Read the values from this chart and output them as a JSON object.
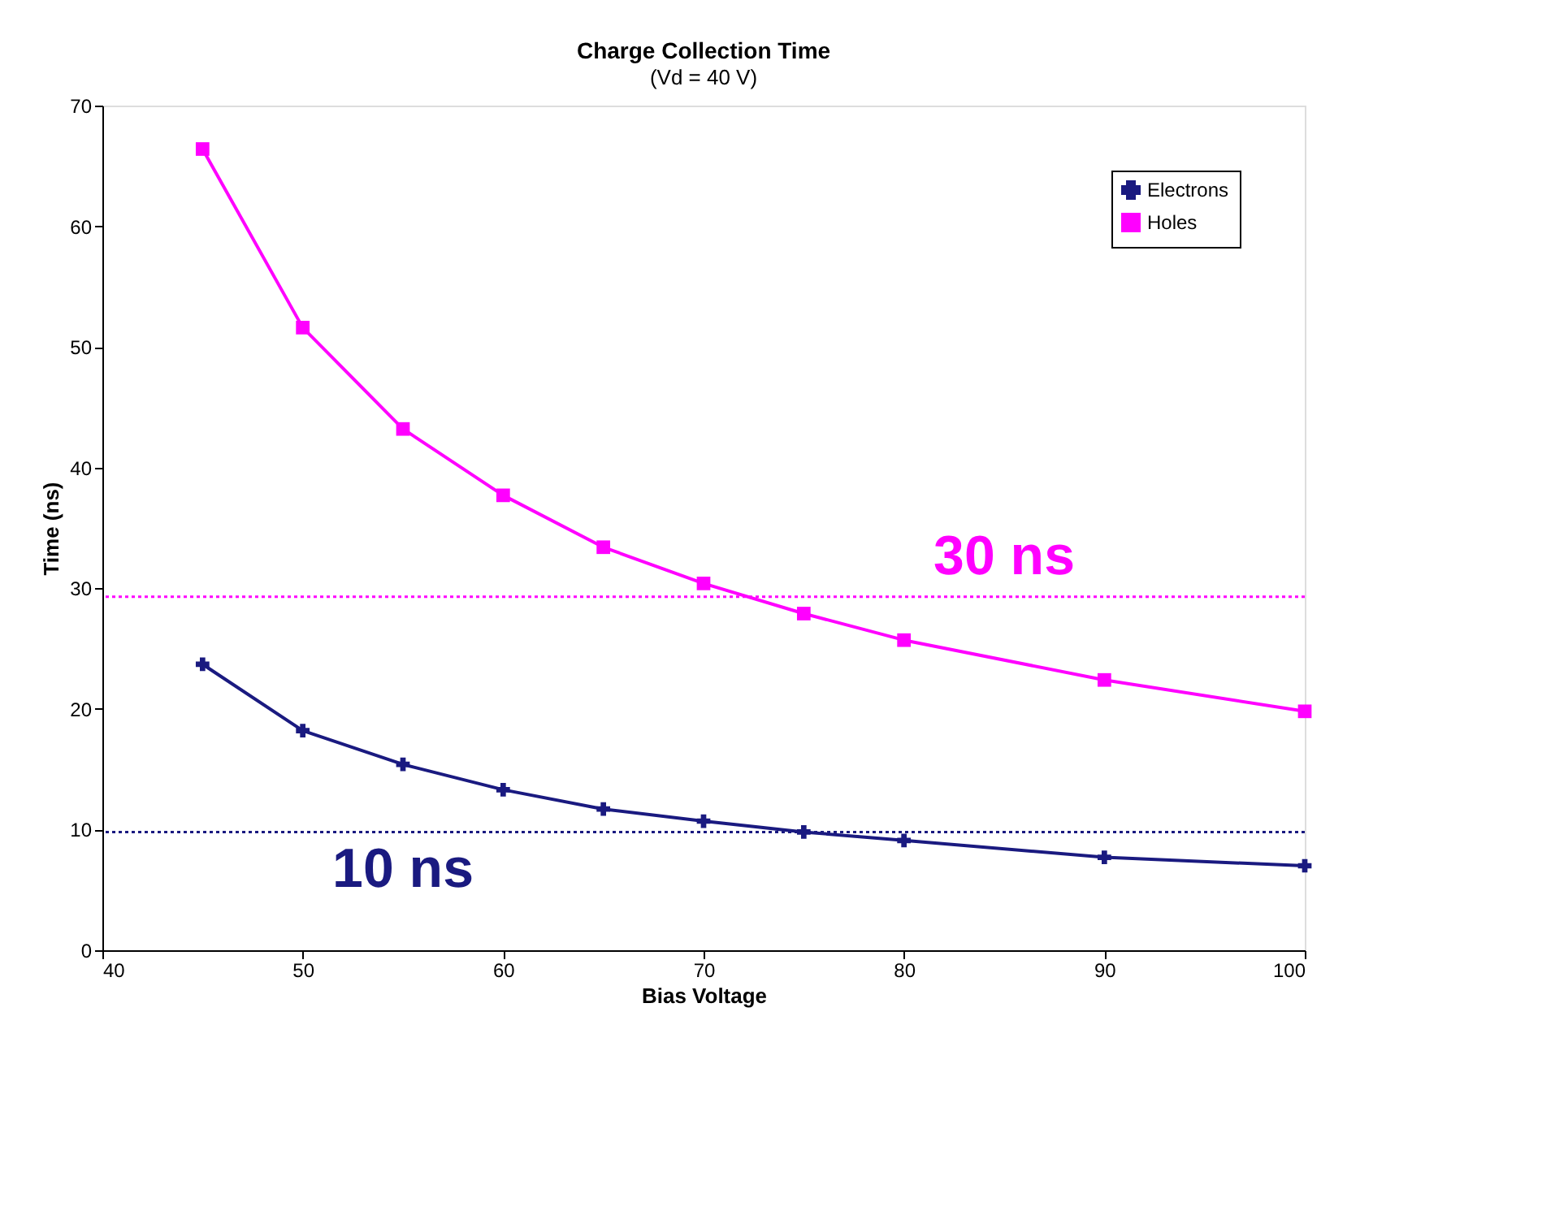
{
  "chart_data": {
    "type": "line",
    "title": "Charge Collection Time",
    "subtitle": "(Vd = 40 V)",
    "xlabel": "Bias Voltage",
    "ylabel": "Time (ns)",
    "x": [
      45,
      50,
      55,
      60,
      65,
      70,
      75,
      80,
      90,
      100
    ],
    "series": [
      {
        "name": "Electrons",
        "color": "#1a1a80",
        "marker": "cross",
        "values": [
          23.7,
          18.2,
          15.4,
          13.3,
          11.7,
          10.7,
          9.8,
          9.1,
          7.7,
          7.0
        ]
      },
      {
        "name": "Holes",
        "color": "#ff00ff",
        "marker": "square",
        "values": [
          66.4,
          51.6,
          43.2,
          37.7,
          33.4,
          30.4,
          27.9,
          25.7,
          22.4,
          19.8
        ]
      }
    ],
    "xlim": [
      40,
      100
    ],
    "xticks": [
      40,
      50,
      60,
      70,
      80,
      90,
      100
    ],
    "ylim": [
      0,
      70
    ],
    "yticks": [
      0,
      10,
      20,
      30,
      40,
      50,
      60,
      70
    ],
    "ref_lines": [
      {
        "axis": "y",
        "value": 29.3,
        "label": "30 ns",
        "color": "#ff00ff",
        "line_style": "dotted"
      },
      {
        "axis": "y",
        "value": 9.8,
        "label": "10 ns",
        "color": "#1a1a80",
        "line_style": "dotted"
      }
    ],
    "grid": false,
    "legend": "top right",
    "line_style": "solid"
  }
}
